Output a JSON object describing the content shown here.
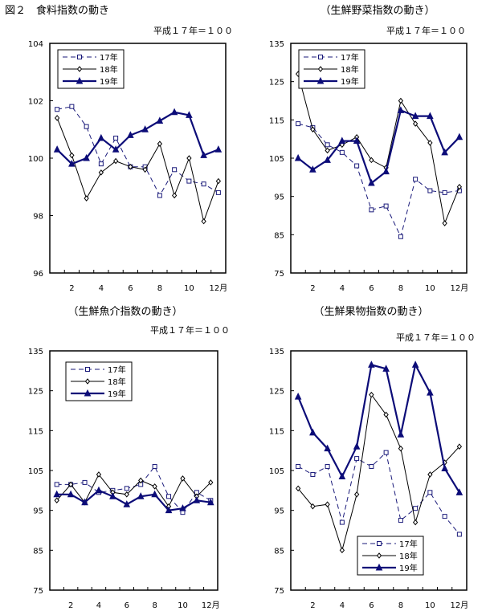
{
  "figure_label": "図２　食料指数の動き",
  "legend_labels": [
    "17年",
    "18年",
    "19年"
  ],
  "chart_data": [
    {
      "type": "line",
      "title": "",
      "note": "",
      "ylim": [
        96,
        104
      ],
      "yticks": [
        "96",
        "98",
        "100",
        "102",
        "104"
      ],
      "x": [
        1,
        2,
        3,
        4,
        5,
        6,
        7,
        8,
        9,
        10,
        11,
        12
      ],
      "xtick_labels": [
        "2",
        "4",
        "6",
        "8",
        "10",
        "12月"
      ],
      "series": [
        {
          "name": "17年",
          "values": [
            101.7,
            101.8,
            101.1,
            99.8,
            100.7,
            99.7,
            99.7,
            98.7,
            99.6,
            99.2,
            99.1,
            98.8
          ]
        },
        {
          "name": "18年",
          "values": [
            101.4,
            100.1,
            98.6,
            99.5,
            99.9,
            99.7,
            99.6,
            100.5,
            98.7,
            100.0,
            97.8,
            99.2
          ]
        },
        {
          "name": "19年",
          "values": [
            100.3,
            99.8,
            100.0,
            100.7,
            100.3,
            100.8,
            101.0,
            101.3,
            101.6,
            101.5,
            100.1,
            100.3
          ]
        }
      ],
      "legend_position": "top-left"
    },
    {
      "type": "line",
      "title": "（生鮮野菜指数の動き）",
      "note": "平成１７年＝１００",
      "ylim": [
        75,
        135
      ],
      "yticks": [
        "75",
        "85",
        "95",
        "105",
        "115",
        "125",
        "135"
      ],
      "x": [
        1,
        2,
        3,
        4,
        5,
        6,
        7,
        8,
        9,
        10,
        11,
        12
      ],
      "xtick_labels": [
        "2",
        "4",
        "6",
        "8",
        "10",
        "12月"
      ],
      "series": [
        {
          "name": "17年",
          "values": [
            114,
            113,
            108.5,
            106.5,
            103,
            91.5,
            92.5,
            84.5,
            99.5,
            96.5,
            96,
            96.5
          ]
        },
        {
          "name": "18年",
          "values": [
            127,
            112.5,
            107,
            108.5,
            110.5,
            104.5,
            102.5,
            120,
            114,
            109,
            88,
            97.5
          ]
        },
        {
          "name": "19年",
          "values": [
            105,
            102,
            104.5,
            109.5,
            109.5,
            98.5,
            101.5,
            117.5,
            116,
            116,
            106.5,
            110.5
          ]
        }
      ],
      "legend_position": "top-left"
    },
    {
      "type": "line",
      "title": "（生鮮魚介指数の動き）",
      "note": "平成１７年＝１００",
      "ylim": [
        75,
        135
      ],
      "yticks": [
        "75",
        "85",
        "95",
        "105",
        "115",
        "125",
        "135"
      ],
      "x": [
        1,
        2,
        3,
        4,
        5,
        6,
        7,
        8,
        9,
        10,
        11,
        12
      ],
      "xtick_labels": [
        "2",
        "4",
        "6",
        "8",
        "10",
        "12月"
      ],
      "series": [
        {
          "name": "17年",
          "values": [
            101.5,
            101.5,
            102,
            99.5,
            100,
            100.5,
            101.5,
            106,
            98.5,
            94.5,
            99.5,
            97.5
          ]
        },
        {
          "name": "18年",
          "values": [
            97.5,
            101.5,
            97,
            104,
            99.5,
            99,
            102.5,
            101,
            96,
            103,
            98.5,
            102
          ]
        },
        {
          "name": "19年",
          "values": [
            99,
            99,
            97,
            100,
            98.5,
            96.5,
            98.5,
            99,
            95,
            95.5,
            97.5,
            97
          ]
        }
      ],
      "legend_position": "top-left"
    },
    {
      "type": "line",
      "title": "（生鮮果物指数の動き）",
      "note": "平成１７年＝１００",
      "ylim": [
        75,
        135
      ],
      "yticks": [
        "75",
        "85",
        "95",
        "105",
        "115",
        "125",
        "135"
      ],
      "x": [
        1,
        2,
        3,
        4,
        5,
        6,
        7,
        8,
        9,
        10,
        11,
        12
      ],
      "xtick_labels": [
        "2",
        "4",
        "6",
        "8",
        "10",
        "12月"
      ],
      "series": [
        {
          "name": "17年",
          "values": [
            106,
            104,
            106,
            92,
            108,
            106,
            109.5,
            92.5,
            95.5,
            99.5,
            93.5,
            89
          ]
        },
        {
          "name": "18年",
          "values": [
            100.5,
            96,
            96.5,
            85,
            99,
            124,
            119,
            110.5,
            92,
            104,
            107,
            111
          ]
        },
        {
          "name": "19年",
          "values": [
            123.5,
            114.5,
            110.5,
            103.5,
            111,
            131.5,
            130.5,
            114,
            131.5,
            124.5,
            105.5,
            99.5
          ]
        }
      ],
      "legend_position": "bottom-left"
    }
  ]
}
